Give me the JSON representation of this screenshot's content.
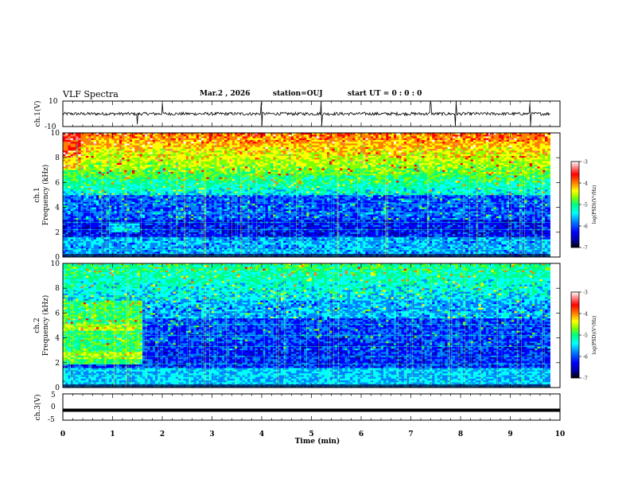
{
  "header": {
    "title": "VLF Spectra",
    "date": "Mar.2 , 2026",
    "station": "station=OUJ",
    "start": "start UT = 0 : 0 : 0"
  },
  "chart_data": [
    {
      "type": "line",
      "panel": "ch1-waveform",
      "ylabel": "ch.1(V)",
      "yticks": [
        "10",
        "-10"
      ],
      "ylim": [
        -10,
        10
      ],
      "xlim": [
        0,
        10
      ],
      "baseline": 0,
      "spike_times": [
        1.5,
        2.0,
        4.0,
        5.2,
        7.4,
        7.9,
        9.4
      ]
    },
    {
      "type": "heatmap",
      "panel": "ch1-spectrogram",
      "ylabel": [
        "ch.1",
        "Frequency (kHz)"
      ],
      "yticks": [
        "0",
        "2",
        "4",
        "6",
        "8",
        "10"
      ],
      "ylim": [
        0,
        10
      ],
      "xlim": [
        0,
        9.8
      ],
      "colorbar_label": "log(PSD)(V²/Hz)",
      "colorbar_ticks": [
        "-3",
        "-4",
        "-5",
        "-6",
        "-7"
      ],
      "colorbar_range": [
        -7,
        -3
      ]
    },
    {
      "type": "heatmap",
      "panel": "ch2-spectrogram",
      "ylabel": [
        "ch.2",
        "Frequency (kHz)"
      ],
      "yticks": [
        "0",
        "2",
        "4",
        "6",
        "8",
        "10"
      ],
      "ylim": [
        0,
        10
      ],
      "xlim": [
        0,
        9.8
      ],
      "colorbar_label": "log(PSD)(V²/Hz)",
      "colorbar_ticks": [
        "-3",
        "-4",
        "-5",
        "-6",
        "-7"
      ],
      "colorbar_range": [
        -7,
        -3
      ]
    },
    {
      "type": "line",
      "panel": "ch3-waveform",
      "ylabel": "ch.3(V)",
      "yticks": [
        "5",
        "0",
        "-5"
      ],
      "ylim": [
        -5,
        5
      ],
      "xlim": [
        0,
        10
      ],
      "values_constant": -1.2
    }
  ],
  "xaxis": {
    "label": "Time (min)",
    "ticks": [
      "0",
      "1",
      "2",
      "3",
      "4",
      "5",
      "6",
      "7",
      "8",
      "9",
      "10"
    ]
  },
  "colors": {
    "colormap": [
      "#000000",
      "#0000a0",
      "#0000ff",
      "#0080ff",
      "#00ffff",
      "#00ff80",
      "#80ff00",
      "#ffff00",
      "#ff8000",
      "#ff0000",
      "#ff8080",
      "#ffffff"
    ]
  }
}
